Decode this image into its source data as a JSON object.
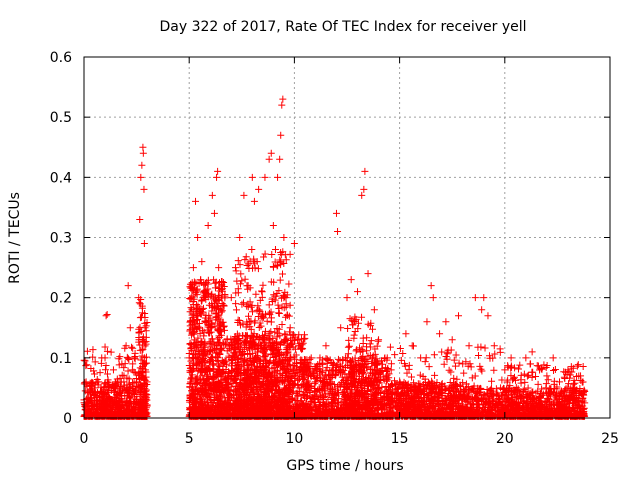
{
  "colors": {
    "points": "#ff0000",
    "axis": "#000000",
    "grid": "#a0a0a0"
  },
  "chart_data": {
    "type": "scatter",
    "title": "Day 322 of 2017, Rate Of TEC Index for receiver yell",
    "xlabel": "GPS time / hours",
    "ylabel": "ROTI / TECUs",
    "xlim": [
      0,
      25
    ],
    "ylim": [
      0,
      0.6
    ],
    "grid": true,
    "marker": "plus",
    "xticks": [
      0,
      5,
      10,
      15,
      20,
      25
    ],
    "xtick_labels": [
      "0",
      "5",
      "10",
      "15",
      "20",
      "25"
    ],
    "yticks": [
      0,
      0.1,
      0.2,
      0.3,
      0.4,
      0.5,
      0.6
    ],
    "ytick_labels": [
      "0",
      "0.1",
      "0.2",
      "0.3",
      "0.4",
      "0.5",
      "0.6"
    ],
    "series": [
      {
        "name": "ROTI",
        "points": [
          [
            0.05,
            0.095
          ],
          [
            0.1,
            0.06
          ],
          [
            0.15,
            0.03
          ],
          [
            0.2,
            0.015
          ],
          [
            0.3,
            0.045
          ],
          [
            0.4,
            0.02
          ],
          [
            0.5,
            0.05
          ],
          [
            0.6,
            0.03
          ],
          [
            0.7,
            0.06
          ],
          [
            0.8,
            0.02
          ],
          [
            0.9,
            0.04
          ],
          [
            1.0,
            0.1
          ],
          [
            1.05,
            0.17
          ],
          [
            1.1,
            0.172
          ],
          [
            1.2,
            0.05
          ],
          [
            1.3,
            0.03
          ],
          [
            1.4,
            0.08
          ],
          [
            1.5,
            0.06
          ],
          [
            1.6,
            0.04
          ],
          [
            1.7,
            0.02
          ],
          [
            1.8,
            0.09
          ],
          [
            1.9,
            0.07
          ],
          [
            2.0,
            0.12
          ],
          [
            2.1,
            0.22
          ],
          [
            2.2,
            0.15
          ],
          [
            2.3,
            0.08
          ],
          [
            2.4,
            0.1
          ],
          [
            2.5,
            0.06
          ],
          [
            2.6,
            0.2
          ],
          [
            2.65,
            0.33
          ],
          [
            2.7,
            0.4
          ],
          [
            2.75,
            0.42
          ],
          [
            2.8,
            0.45
          ],
          [
            2.82,
            0.44
          ],
          [
            2.85,
            0.38
          ],
          [
            2.87,
            0.29
          ],
          [
            2.9,
            0.15
          ],
          [
            2.92,
            0.08
          ],
          [
            2.95,
            0.03
          ],
          [
            3.0,
            0.02
          ],
          [
            5.0,
            0.1
          ],
          [
            5.1,
            0.2
          ],
          [
            5.2,
            0.25
          ],
          [
            5.3,
            0.36
          ],
          [
            5.4,
            0.3
          ],
          [
            5.5,
            0.18
          ],
          [
            5.6,
            0.26
          ],
          [
            5.7,
            0.12
          ],
          [
            5.8,
            0.08
          ],
          [
            5.9,
            0.32
          ],
          [
            6.0,
            0.15
          ],
          [
            6.1,
            0.37
          ],
          [
            6.2,
            0.34
          ],
          [
            6.3,
            0.4
          ],
          [
            6.35,
            0.41
          ],
          [
            6.4,
            0.25
          ],
          [
            6.5,
            0.18
          ],
          [
            6.6,
            0.09
          ],
          [
            6.8,
            0.13
          ],
          [
            7.0,
            0.2
          ],
          [
            7.2,
            0.25
          ],
          [
            7.4,
            0.3
          ],
          [
            7.6,
            0.37
          ],
          [
            7.8,
            0.22
          ],
          [
            8.0,
            0.4
          ],
          [
            8.1,
            0.36
          ],
          [
            8.3,
            0.38
          ],
          [
            8.5,
            0.17
          ],
          [
            8.6,
            0.4
          ],
          [
            8.8,
            0.43
          ],
          [
            8.9,
            0.44
          ],
          [
            9.0,
            0.32
          ],
          [
            9.1,
            0.28
          ],
          [
            9.2,
            0.4
          ],
          [
            9.3,
            0.43
          ],
          [
            9.35,
            0.47
          ],
          [
            9.4,
            0.52
          ],
          [
            9.45,
            0.53
          ],
          [
            9.5,
            0.3
          ],
          [
            9.6,
            0.2
          ],
          [
            9.8,
            0.15
          ],
          [
            10.0,
            0.29
          ],
          [
            10.2,
            0.12
          ],
          [
            10.5,
            0.08
          ],
          [
            10.8,
            0.1
          ],
          [
            11.0,
            0.06
          ],
          [
            11.2,
            0.09
          ],
          [
            11.5,
            0.12
          ],
          [
            11.8,
            0.08
          ],
          [
            12.0,
            0.34
          ],
          [
            12.05,
            0.31
          ],
          [
            12.2,
            0.15
          ],
          [
            12.5,
            0.2
          ],
          [
            12.7,
            0.23
          ],
          [
            13.0,
            0.21
          ],
          [
            13.2,
            0.37
          ],
          [
            13.3,
            0.38
          ],
          [
            13.35,
            0.41
          ],
          [
            13.5,
            0.24
          ],
          [
            13.8,
            0.18
          ],
          [
            14.0,
            0.13
          ],
          [
            14.3,
            0.1
          ],
          [
            14.6,
            0.08
          ],
          [
            15.0,
            0.06
          ],
          [
            15.3,
            0.14
          ],
          [
            15.6,
            0.12
          ],
          [
            16.0,
            0.1
          ],
          [
            16.3,
            0.16
          ],
          [
            16.5,
            0.22
          ],
          [
            16.6,
            0.2
          ],
          [
            16.9,
            0.14
          ],
          [
            17.2,
            0.16
          ],
          [
            17.5,
            0.13
          ],
          [
            17.8,
            0.17
          ],
          [
            18.0,
            0.09
          ],
          [
            18.3,
            0.12
          ],
          [
            18.6,
            0.2
          ],
          [
            18.9,
            0.18
          ],
          [
            19.0,
            0.2
          ],
          [
            19.2,
            0.17
          ],
          [
            19.5,
            0.12
          ],
          [
            19.8,
            0.05
          ],
          [
            20.0,
            0.08
          ],
          [
            20.3,
            0.1
          ],
          [
            20.6,
            0.04
          ],
          [
            21.0,
            0.1
          ],
          [
            21.3,
            0.11
          ],
          [
            21.6,
            0.03
          ],
          [
            22.0,
            0.07
          ],
          [
            22.3,
            0.1
          ],
          [
            22.6,
            0.06
          ],
          [
            23.0,
            0.08
          ],
          [
            23.3,
            0.05
          ],
          [
            23.6,
            0.07
          ],
          [
            23.7,
            0.02
          ]
        ]
      }
    ],
    "dense_bands": [
      [
        0.0,
        3.0,
        0.0,
        0.06,
        520
      ],
      [
        0.0,
        3.0,
        0.0,
        0.12,
        180
      ],
      [
        2.6,
        3.0,
        0.0,
        0.2,
        120
      ],
      [
        5.0,
        6.7,
        0.0,
        0.23,
        900
      ],
      [
        6.7,
        10.5,
        0.0,
        0.14,
        1300
      ],
      [
        7.2,
        9.8,
        0.0,
        0.28,
        500
      ],
      [
        10.5,
        14.5,
        0.0,
        0.1,
        900
      ],
      [
        12.5,
        14.0,
        0.0,
        0.17,
        250
      ],
      [
        14.5,
        18.0,
        0.0,
        0.06,
        700
      ],
      [
        14.5,
        20.0,
        0.0,
        0.12,
        250
      ],
      [
        18.0,
        23.8,
        0.0,
        0.05,
        900
      ],
      [
        20.0,
        23.8,
        0.0,
        0.09,
        250
      ]
    ]
  }
}
